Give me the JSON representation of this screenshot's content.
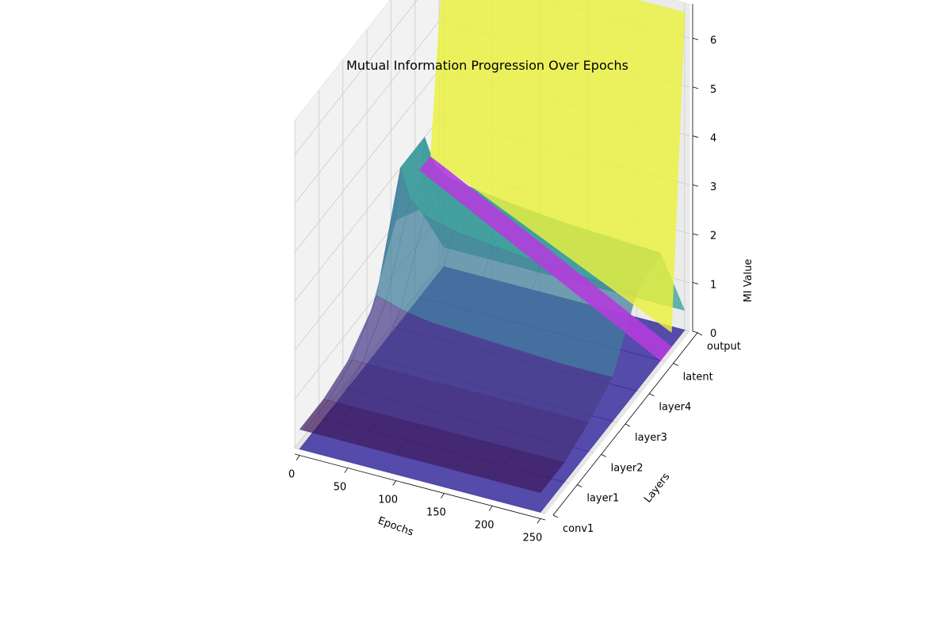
{
  "chart_data": {
    "type": "surface-3d",
    "title": "Mutual Information Progression Over Epochs",
    "xlabel": "Epochs",
    "ylabel": "Layers",
    "zlabel": "MI Value",
    "x_ticks": [
      "0",
      "50",
      "100",
      "150",
      "200",
      "250"
    ],
    "y_ticks": [
      "conv1",
      "layer1",
      "layer2",
      "layer3",
      "layer4",
      "latent",
      "output"
    ],
    "z_ticks": [
      "0",
      "1",
      "2",
      "3",
      "4",
      "5",
      "6"
    ],
    "xlim": [
      -5,
      255
    ],
    "zlim": [
      0,
      6.7
    ],
    "grid": true,
    "colormap": "viridis",
    "surfaces": [
      {
        "epochs": [
          0,
          250
        ],
        "values": [
          0.0,
          0.0,
          0.0,
          0.0,
          0.0,
          0.0,
          0.0
        ],
        "colors": [
          "#3b2fa0",
          "#3b2fa0",
          "#3b2fa0",
          "#3b2fa0",
          "#3b2fa0",
          "#3b2fa0",
          "#3b2fa0"
        ]
      },
      {
        "epochs": [
          0,
          5,
          15,
          30,
          60,
          100,
          150,
          200,
          250
        ],
        "values": [
          [
            0.4,
            0.4,
            0.4,
            0.4,
            0.4,
            0.4,
            0.4,
            0.4,
            0.4
          ],
          [
            0.4,
            0.4,
            0.4,
            0.4,
            0.4,
            0.4,
            0.4,
            0.4,
            0.4
          ],
          [
            0.55,
            0.6,
            0.6,
            0.6,
            0.6,
            0.6,
            0.6,
            0.6,
            0.6
          ],
          [
            1.0,
            1.3,
            1.25,
            1.15,
            1.05,
            1.0,
            0.95,
            0.9,
            0.9
          ],
          [
            2.2,
            3.3,
            2.7,
            2.45,
            2.3,
            2.2,
            2.1,
            2.05,
            2.0
          ],
          [
            1.8,
            3.3,
            2.8,
            2.6,
            2.5,
            2.4,
            2.3,
            2.25,
            2.2
          ],
          [
            0.4,
            0.4,
            0.4,
            0.4,
            0.4,
            0.4,
            0.4,
            0.4,
            0.4
          ]
        ],
        "row_colors": [
          "#3e1a5e",
          "#45307a",
          "#4a3f8a",
          "#3f7d9a",
          "#37989a",
          "#2a9d8f",
          "#4fa6a0"
        ]
      },
      {
        "epochs": [
          0,
          250
        ],
        "values": [
          0.0,
          0.0,
          0.0,
          0.0,
          0.0,
          0.0,
          6.5
        ],
        "band_color": "#b33ddb",
        "top_color": "#eaf23d"
      }
    ]
  }
}
